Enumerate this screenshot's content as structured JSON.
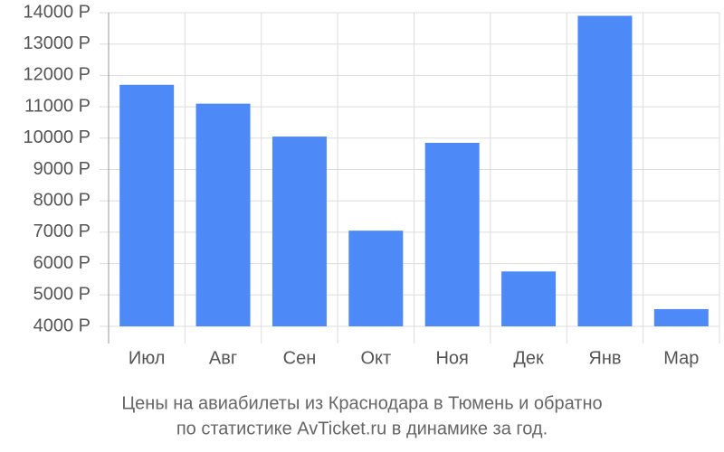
{
  "chart_data": {
    "type": "bar",
    "caption": [
      "Цены на авиабилеты из Краснодара в Тюмень и обратно",
      "по статистике AvTicket.ru в динамике за год."
    ],
    "categories": [
      "Июл",
      "Авг",
      "Сен",
      "Окт",
      "Ноя",
      "Дек",
      "Янв",
      "Мар"
    ],
    "values": [
      11700,
      11100,
      10050,
      7050,
      9850,
      5750,
      13900,
      4550
    ],
    "color": "#4e8af7",
    "ylim": [
      4000,
      14000
    ],
    "yticks": [
      {
        "value": 4000,
        "label": "4000 Р"
      },
      {
        "value": 5000,
        "label": "5000 Р"
      },
      {
        "value": 6000,
        "label": "6000 Р"
      },
      {
        "value": 7000,
        "label": "7000 Р"
      },
      {
        "value": 8000,
        "label": "8000 Р"
      },
      {
        "value": 9000,
        "label": "9000 Р"
      },
      {
        "value": 10000,
        "label": "10000 Р"
      },
      {
        "value": 11000,
        "label": "11000 Р"
      },
      {
        "value": 12000,
        "label": "12000 Р"
      },
      {
        "value": 13000,
        "label": "13000 Р"
      },
      {
        "value": 14000,
        "label": "14000 Р"
      }
    ],
    "grid": true
  }
}
